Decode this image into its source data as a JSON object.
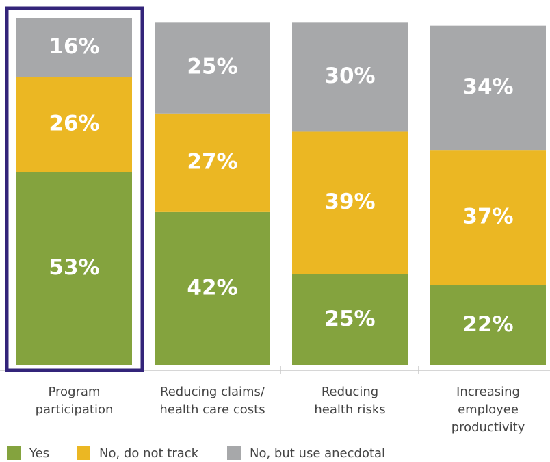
{
  "chart_data": {
    "type": "stacked_bar",
    "categories": [
      "Program participation",
      "Reducing claims/ health care costs",
      "Reducing health risks",
      "Increasing employee productivity"
    ],
    "series": [
      {
        "name": "Yes",
        "color": "#84a33e",
        "values": [
          53,
          42,
          25,
          22
        ],
        "value_labels": [
          "53%",
          "42%",
          "25%",
          "22%"
        ]
      },
      {
        "name": "No, do not track",
        "color": "#ebb723",
        "values": [
          26,
          27,
          39,
          37
        ],
        "value_labels": [
          "26%",
          "27%",
          "39%",
          "37%"
        ]
      },
      {
        "name": "No, but use anecdotal",
        "color": "#a7a8aa",
        "values": [
          16,
          25,
          30,
          34
        ],
        "value_labels": [
          "16%",
          "25%",
          "30%",
          "34%"
        ]
      }
    ],
    "ylim": [
      0,
      95
    ],
    "legend": "bottom"
  }
}
